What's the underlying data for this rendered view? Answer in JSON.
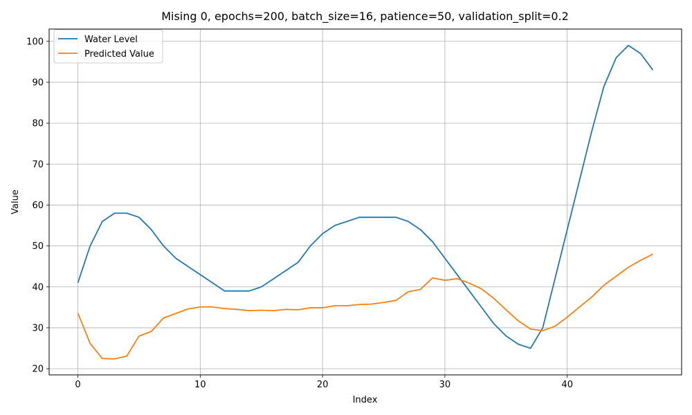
{
  "chart_data": {
    "type": "line",
    "title": "Mising 0, epochs=200, batch_size=16, patience=50, validation_split=0.2",
    "xlabel": "Index",
    "ylabel": "Value",
    "xlim": [
      -2.35,
      49.35
    ],
    "ylim": [
      18.5,
      103
    ],
    "xticks": [
      0,
      10,
      20,
      30,
      40
    ],
    "yticks": [
      20,
      30,
      40,
      50,
      60,
      70,
      80,
      90,
      100
    ],
    "grid": true,
    "legend_position": "top-left",
    "series": [
      {
        "name": "Water Level",
        "color": "#1f77b4",
        "values": [
          41,
          50,
          56,
          58,
          58,
          57,
          54,
          50,
          47,
          45,
          43,
          41,
          39,
          39,
          39,
          40,
          42,
          44,
          46,
          50,
          53,
          55,
          56,
          57,
          57,
          57,
          57,
          56,
          54,
          51,
          47,
          43,
          39,
          35,
          31,
          28,
          26,
          25,
          30,
          42,
          54,
          66,
          78,
          89,
          96,
          99,
          97,
          93
        ]
      },
      {
        "name": "Predicted Value",
        "color": "#ff7f0e",
        "values": [
          33.6,
          26.2,
          22.5,
          22.4,
          23.1,
          28.0,
          29.1,
          32.4,
          33.5,
          34.6,
          35.1,
          35.1,
          34.7,
          34.5,
          34.2,
          34.3,
          34.2,
          34.5,
          34.4,
          34.9,
          34.9,
          35.4,
          35.4,
          35.7,
          35.8,
          36.2,
          36.7,
          38.8,
          39.4,
          42.2,
          41.6,
          42.0,
          40.9,
          39.5,
          37.2,
          34.4,
          31.7,
          29.7,
          29.3,
          30.4,
          32.6,
          35.1,
          37.5,
          40.4,
          42.6,
          44.8,
          46.5,
          48.0
        ]
      }
    ]
  }
}
